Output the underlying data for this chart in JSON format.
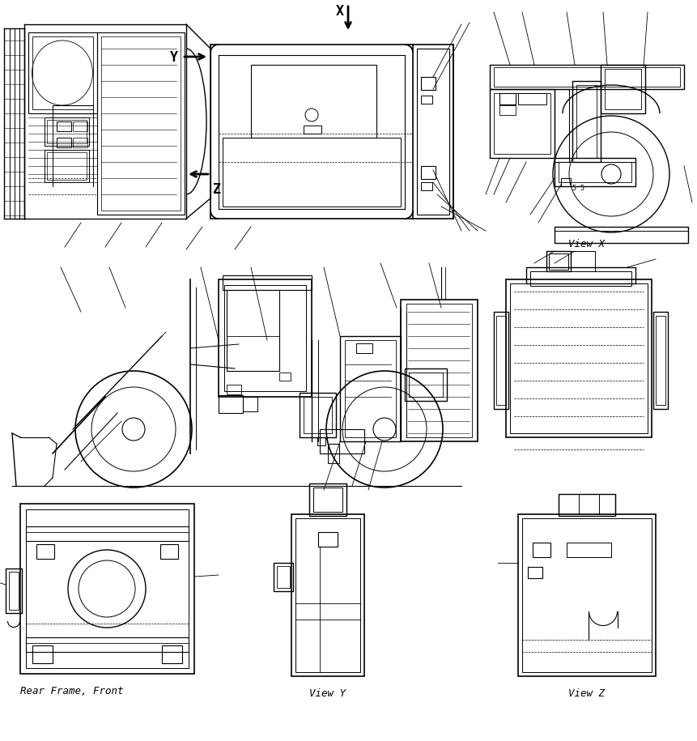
{
  "background_color": "#ffffff",
  "line_color": "#000000",
  "fig_width": 8.61,
  "fig_height": 9.15,
  "dpi": 100,
  "labels": {
    "view_x": "View X",
    "view_y": "View Y",
    "view_z": "View Z",
    "rear_frame": "Rear Frame, Front",
    "X": "X",
    "Y": "Y",
    "Z": "Z"
  },
  "font_size": 8,
  "arrow_font_size": 11
}
